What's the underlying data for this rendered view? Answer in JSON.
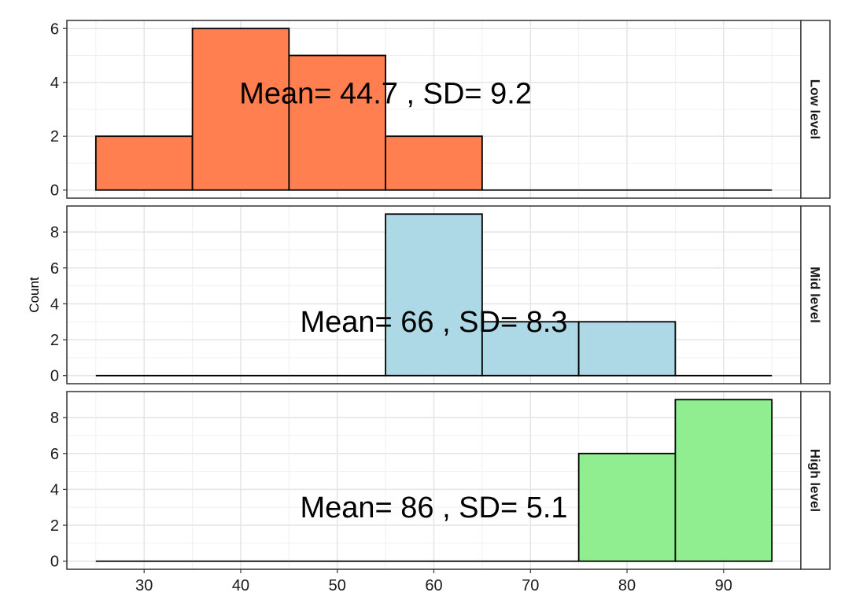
{
  "chart_data": {
    "type": "bar",
    "subtype": "faceted-histogram",
    "ylabel": "Count",
    "xlabel": "",
    "x_ticks": [
      30,
      40,
      50,
      60,
      70,
      80,
      90
    ],
    "xlim": [
      22,
      98
    ],
    "bin_width": 10,
    "grid": true,
    "facet_strip_position": "right",
    "panels": [
      {
        "name": "Low level",
        "fill": "#ff7f50",
        "ylim": [
          -0.3,
          6.3
        ],
        "y_ticks": [
          0,
          2,
          4,
          6
        ],
        "bins": [
          {
            "start": 25,
            "end": 35,
            "count": 2
          },
          {
            "start": 35,
            "end": 45,
            "count": 6
          },
          {
            "start": 45,
            "end": 55,
            "count": 5
          },
          {
            "start": 55,
            "end": 65,
            "count": 2
          },
          {
            "start": 65,
            "end": 75,
            "count": 0
          },
          {
            "start": 75,
            "end": 85,
            "count": 0
          },
          {
            "start": 85,
            "end": 95,
            "count": 0
          }
        ],
        "annotation": {
          "text": "Mean= 44.7 , SD= 9.2",
          "x": 55,
          "y": 3.6
        }
      },
      {
        "name": "Mid level",
        "fill": "#add8e6",
        "ylim": [
          -0.45,
          9.45
        ],
        "y_ticks": [
          0,
          2,
          4,
          6,
          8
        ],
        "bins": [
          {
            "start": 25,
            "end": 35,
            "count": 0
          },
          {
            "start": 35,
            "end": 45,
            "count": 0
          },
          {
            "start": 45,
            "end": 55,
            "count": 0
          },
          {
            "start": 55,
            "end": 65,
            "count": 9
          },
          {
            "start": 65,
            "end": 75,
            "count": 3
          },
          {
            "start": 75,
            "end": 85,
            "count": 3
          },
          {
            "start": 85,
            "end": 95,
            "count": 0
          }
        ],
        "annotation": {
          "text": "Mean= 66 , SD= 8.3",
          "x": 60,
          "y": 3.0
        }
      },
      {
        "name": "High level",
        "fill": "#90ee90",
        "ylim": [
          -0.45,
          9.45
        ],
        "y_ticks": [
          0,
          2,
          4,
          6,
          8
        ],
        "bins": [
          {
            "start": 25,
            "end": 35,
            "count": 0
          },
          {
            "start": 35,
            "end": 45,
            "count": 0
          },
          {
            "start": 45,
            "end": 55,
            "count": 0
          },
          {
            "start": 55,
            "end": 65,
            "count": 0
          },
          {
            "start": 65,
            "end": 75,
            "count": 0
          },
          {
            "start": 75,
            "end": 85,
            "count": 6
          },
          {
            "start": 85,
            "end": 95,
            "count": 9
          }
        ],
        "annotation": {
          "text": "Mean= 86 , SD= 5.1",
          "x": 60,
          "y": 3.0
        }
      }
    ]
  }
}
